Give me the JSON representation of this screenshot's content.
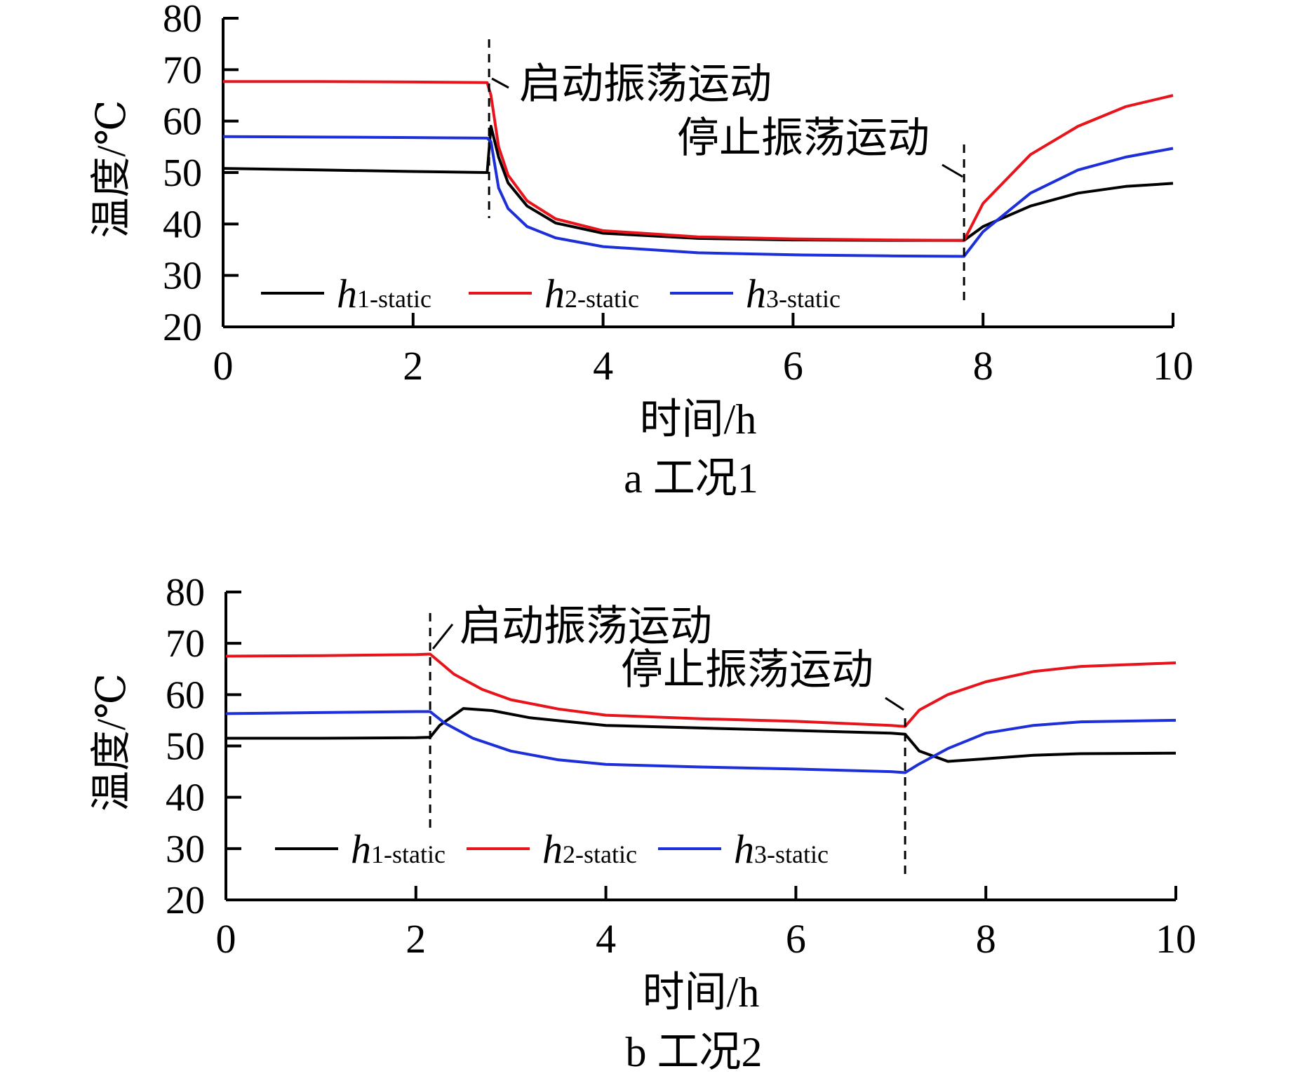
{
  "chart_data": [
    {
      "type": "line",
      "caption": "a 工况1",
      "xlabel": "时间/h",
      "ylabel": "温度/℃",
      "xlim": [
        0,
        10
      ],
      "ylim": [
        20,
        80
      ],
      "x_ticks": [
        "0",
        "2",
        "4",
        "6",
        "8",
        "10"
      ],
      "y_ticks": [
        "20",
        "30",
        "40",
        "50",
        "60",
        "70",
        "80"
      ],
      "legend_position": "bottom-inside",
      "annotations": [
        {
          "text": "启动振荡运动",
          "x": 2.8
        },
        {
          "text": "停止振荡运动",
          "x": 7.8
        }
      ],
      "series": [
        {
          "name_main": "h",
          "name_sub": "1-static",
          "color": "#000000",
          "points": [
            [
              0,
              50.8
            ],
            [
              1,
              50.5
            ],
            [
              2,
              50.2
            ],
            [
              2.78,
              50.0
            ],
            [
              2.82,
              59.0
            ],
            [
              2.9,
              53.0
            ],
            [
              3.0,
              48.0
            ],
            [
              3.2,
              43.5
            ],
            [
              3.5,
              40.2
            ],
            [
              4.0,
              38.2
            ],
            [
              5.0,
              37.2
            ],
            [
              6.0,
              36.9
            ],
            [
              7.0,
              36.8
            ],
            [
              7.8,
              36.8
            ],
            [
              8.0,
              39.5
            ],
            [
              8.5,
              43.5
            ],
            [
              9.0,
              46.0
            ],
            [
              9.5,
              47.3
            ],
            [
              10,
              47.9
            ]
          ]
        },
        {
          "name_main": "h",
          "name_sub": "2-static",
          "color": "#e8141b",
          "points": [
            [
              0,
              67.7
            ],
            [
              1,
              67.7
            ],
            [
              2,
              67.6
            ],
            [
              2.78,
              67.5
            ],
            [
              2.82,
              65.0
            ],
            [
              2.9,
              55.0
            ],
            [
              3.0,
              49.5
            ],
            [
              3.2,
              44.5
            ],
            [
              3.5,
              41.0
            ],
            [
              4.0,
              38.7
            ],
            [
              5.0,
              37.5
            ],
            [
              6.0,
              37.1
            ],
            [
              7.0,
              36.9
            ],
            [
              7.8,
              36.8
            ],
            [
              8.0,
              44.0
            ],
            [
              8.5,
              53.5
            ],
            [
              9.0,
              59.0
            ],
            [
              9.5,
              62.8
            ],
            [
              10,
              65.0
            ]
          ]
        },
        {
          "name_main": "h",
          "name_sub": "3-static",
          "color": "#1c2fd8",
          "points": [
            [
              0,
              57.0
            ],
            [
              1,
              56.9
            ],
            [
              2,
              56.8
            ],
            [
              2.78,
              56.7
            ],
            [
              2.82,
              56.0
            ],
            [
              2.9,
              47.0
            ],
            [
              3.0,
              43.0
            ],
            [
              3.2,
              39.5
            ],
            [
              3.5,
              37.3
            ],
            [
              4.0,
              35.6
            ],
            [
              5.0,
              34.4
            ],
            [
              6.0,
              34.0
            ],
            [
              7.0,
              33.8
            ],
            [
              7.8,
              33.7
            ],
            [
              8.0,
              38.5
            ],
            [
              8.5,
              46.0
            ],
            [
              9.0,
              50.5
            ],
            [
              9.5,
              53.0
            ],
            [
              10,
              54.7
            ]
          ]
        }
      ]
    },
    {
      "type": "line",
      "caption": "b 工况2",
      "xlabel": "时间/h",
      "ylabel": "温度/℃",
      "xlim": [
        0,
        10
      ],
      "ylim": [
        20,
        80
      ],
      "x_ticks": [
        "0",
        "2",
        "4",
        "6",
        "8",
        "10"
      ],
      "y_ticks": [
        "20",
        "30",
        "40",
        "50",
        "60",
        "70",
        "80"
      ],
      "legend_position": "bottom-inside",
      "annotations": [
        {
          "text": "启动振荡运动",
          "x": 2.15
        },
        {
          "text": "停止振荡运动",
          "x": 7.15
        }
      ],
      "series": [
        {
          "name_main": "h",
          "name_sub": "1-static",
          "color": "#000000",
          "points": [
            [
              0,
              51.5
            ],
            [
              1,
              51.5
            ],
            [
              2,
              51.6
            ],
            [
              2.15,
              51.7
            ],
            [
              2.25,
              54.0
            ],
            [
              2.5,
              57.3
            ],
            [
              2.8,
              56.9
            ],
            [
              3.2,
              55.5
            ],
            [
              4,
              54.0
            ],
            [
              5,
              53.5
            ],
            [
              6,
              53.0
            ],
            [
              7,
              52.5
            ],
            [
              7.15,
              52.3
            ],
            [
              7.3,
              49.0
            ],
            [
              7.6,
              47.0
            ],
            [
              8,
              47.5
            ],
            [
              8.5,
              48.2
            ],
            [
              9,
              48.5
            ],
            [
              10,
              48.6
            ]
          ]
        },
        {
          "name_main": "h",
          "name_sub": "2-static",
          "color": "#e8141b",
          "points": [
            [
              0,
              67.5
            ],
            [
              1,
              67.6
            ],
            [
              2,
              67.8
            ],
            [
              2.15,
              67.9
            ],
            [
              2.4,
              64.0
            ],
            [
              2.7,
              61.0
            ],
            [
              3.0,
              59.0
            ],
            [
              3.5,
              57.2
            ],
            [
              4,
              56.0
            ],
            [
              5,
              55.3
            ],
            [
              6,
              54.8
            ],
            [
              7,
              54.0
            ],
            [
              7.15,
              53.8
            ],
            [
              7.3,
              57.0
            ],
            [
              7.6,
              60.0
            ],
            [
              8,
              62.5
            ],
            [
              8.5,
              64.5
            ],
            [
              9,
              65.5
            ],
            [
              10,
              66.2
            ]
          ]
        },
        {
          "name_main": "h",
          "name_sub": "3-static",
          "color": "#1c2fd8",
          "points": [
            [
              0,
              56.3
            ],
            [
              1,
              56.5
            ],
            [
              2,
              56.7
            ],
            [
              2.15,
              56.7
            ],
            [
              2.3,
              54.5
            ],
            [
              2.6,
              51.5
            ],
            [
              3.0,
              49.0
            ],
            [
              3.5,
              47.3
            ],
            [
              4,
              46.4
            ],
            [
              5,
              45.9
            ],
            [
              6,
              45.5
            ],
            [
              7,
              45.0
            ],
            [
              7.15,
              44.8
            ],
            [
              7.3,
              46.5
            ],
            [
              7.6,
              49.5
            ],
            [
              8,
              52.5
            ],
            [
              8.5,
              54.0
            ],
            [
              9,
              54.7
            ],
            [
              10,
              55.0
            ]
          ]
        }
      ]
    }
  ]
}
